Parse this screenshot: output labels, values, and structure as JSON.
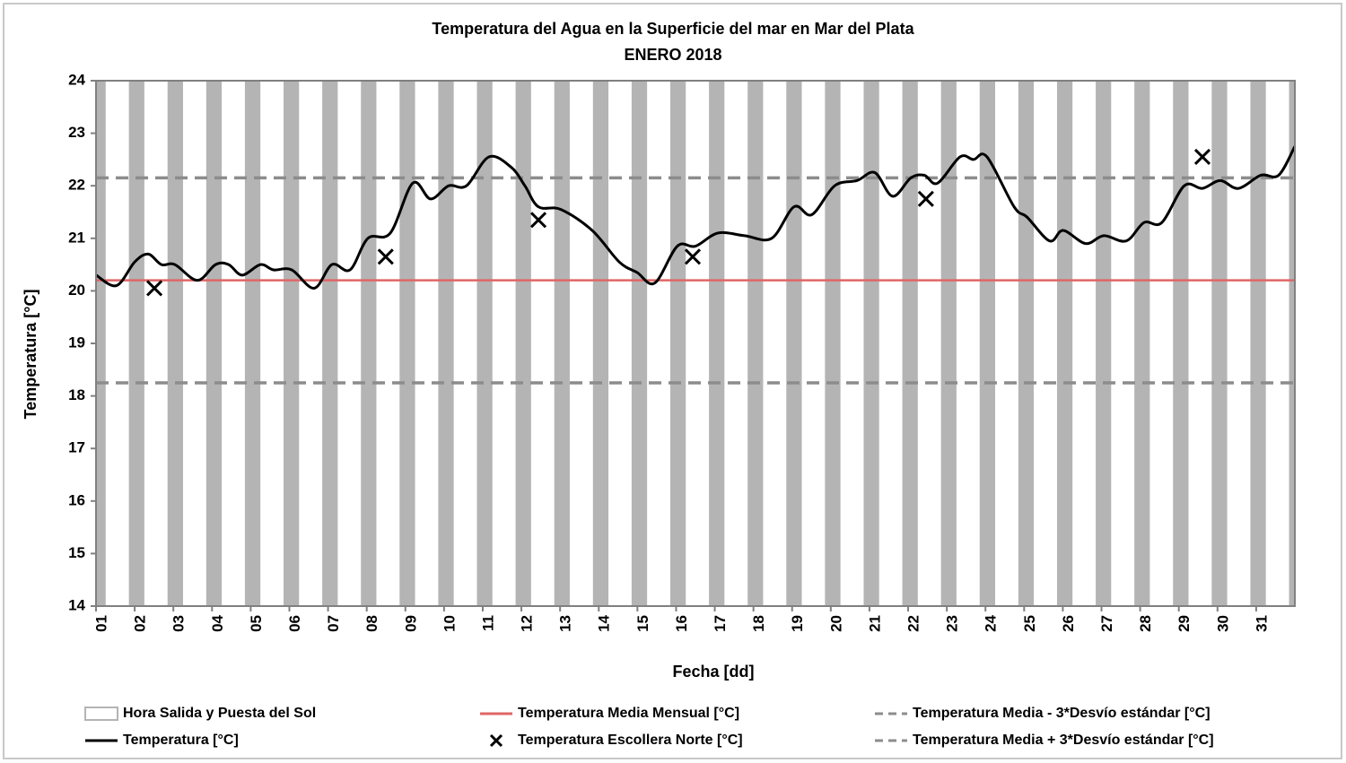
{
  "chart_data": {
    "type": "line",
    "title": "Temperatura del Agua en la Superficie del mar en Mar del Plata",
    "subtitle": "ENERO 2018",
    "xlabel": "Fecha [dd]",
    "ylabel": "Temperatura [°C]",
    "xlim": [
      1,
      32
    ],
    "ylim": [
      14,
      24
    ],
    "yticks": [
      14,
      15,
      16,
      17,
      18,
      19,
      20,
      21,
      22,
      23,
      24
    ],
    "xticks": [
      {
        "value": 1,
        "label": "01"
      },
      {
        "value": 2,
        "label": "02"
      },
      {
        "value": 3,
        "label": "03"
      },
      {
        "value": 4,
        "label": "04"
      },
      {
        "value": 5,
        "label": "05"
      },
      {
        "value": 6,
        "label": "06"
      },
      {
        "value": 7,
        "label": "07"
      },
      {
        "value": 8,
        "label": "08"
      },
      {
        "value": 9,
        "label": "09"
      },
      {
        "value": 10,
        "label": "10"
      },
      {
        "value": 11,
        "label": "11"
      },
      {
        "value": 12,
        "label": "12"
      },
      {
        "value": 13,
        "label": "13"
      },
      {
        "value": 14,
        "label": "14"
      },
      {
        "value": 15,
        "label": "15"
      },
      {
        "value": 16,
        "label": "16"
      },
      {
        "value": 17,
        "label": "17"
      },
      {
        "value": 18,
        "label": "18"
      },
      {
        "value": 19,
        "label": "19"
      },
      {
        "value": 20,
        "label": "20"
      },
      {
        "value": 21,
        "label": "21"
      },
      {
        "value": 22,
        "label": "22"
      },
      {
        "value": 23,
        "label": "23"
      },
      {
        "value": 24,
        "label": "24"
      },
      {
        "value": 25,
        "label": "25"
      },
      {
        "value": 26,
        "label": "26"
      },
      {
        "value": 27,
        "label": "27"
      },
      {
        "value": 28,
        "label": "28"
      },
      {
        "value": 29,
        "label": "29"
      },
      {
        "value": 30,
        "label": "30"
      },
      {
        "value": 31,
        "label": "31"
      }
    ],
    "series": [
      {
        "name": "Hora Salida y Puesta del Sol",
        "kind": "band",
        "color": "#b4b4b4",
        "bands": [
          [
            1,
            1.25
          ],
          [
            1.85,
            2.25
          ],
          [
            2.85,
            3.25
          ],
          [
            3.85,
            4.25
          ],
          [
            4.85,
            5.25
          ],
          [
            5.85,
            6.25
          ],
          [
            6.85,
            7.25
          ],
          [
            7.85,
            8.25
          ],
          [
            8.85,
            9.25
          ],
          [
            9.85,
            10.25
          ],
          [
            10.85,
            11.25
          ],
          [
            11.85,
            12.25
          ],
          [
            12.85,
            13.25
          ],
          [
            13.85,
            14.25
          ],
          [
            14.85,
            15.25
          ],
          [
            15.85,
            16.25
          ],
          [
            16.85,
            17.25
          ],
          [
            17.85,
            18.25
          ],
          [
            18.85,
            19.25
          ],
          [
            19.85,
            20.25
          ],
          [
            20.85,
            21.25
          ],
          [
            21.85,
            22.25
          ],
          [
            22.85,
            23.25
          ],
          [
            23.85,
            24.25
          ],
          [
            24.85,
            25.25
          ],
          [
            25.85,
            26.25
          ],
          [
            26.85,
            27.25
          ],
          [
            27.85,
            28.25
          ],
          [
            28.85,
            29.25
          ],
          [
            29.85,
            30.25
          ],
          [
            30.85,
            31.25
          ],
          [
            31.85,
            32
          ]
        ]
      },
      {
        "name": "Temperatura [°C]",
        "kind": "curve",
        "color": "#000000",
        "x": [
          1.0,
          1.53,
          2.0,
          2.35,
          2.69,
          3.04,
          3.62,
          4.09,
          4.43,
          4.78,
          5.25,
          5.59,
          6.06,
          6.64,
          7.1,
          7.57,
          8.03,
          8.61,
          9.19,
          9.65,
          10.12,
          10.58,
          11.16,
          11.74,
          12.09,
          12.44,
          13.02,
          13.83,
          14.53,
          14.99,
          15.45,
          16.03,
          16.5,
          17.08,
          17.77,
          18.47,
          19.05,
          19.51,
          20.1,
          20.68,
          21.14,
          21.6,
          22.07,
          22.42,
          22.76,
          23.34,
          23.69,
          24.04,
          24.74,
          25.08,
          25.66,
          26.01,
          26.59,
          27.06,
          27.64,
          28.1,
          28.56,
          29.14,
          29.61,
          30.07,
          30.54,
          31.12,
          31.58,
          32.0
        ],
        "values": [
          20.3,
          20.1,
          20.55,
          20.7,
          20.5,
          20.5,
          20.2,
          20.5,
          20.5,
          20.3,
          20.5,
          20.4,
          20.4,
          20.05,
          20.5,
          20.4,
          21.0,
          21.1,
          22.05,
          21.75,
          22.0,
          22.0,
          22.55,
          22.35,
          22.0,
          21.6,
          21.55,
          21.15,
          20.55,
          20.35,
          20.15,
          20.85,
          20.85,
          21.1,
          21.05,
          21.0,
          21.6,
          21.45,
          22.0,
          22.1,
          22.25,
          21.8,
          22.15,
          22.2,
          22.05,
          22.55,
          22.5,
          22.55,
          21.6,
          21.4,
          20.95,
          21.15,
          20.9,
          21.05,
          20.95,
          21.3,
          21.3,
          22.0,
          21.95,
          22.1,
          21.95,
          22.2,
          22.2,
          22.75
        ]
      },
      {
        "name": "Temperatura Media Mensual [°C]",
        "kind": "hline",
        "style": "solid",
        "color": "#e06666",
        "value": 20.2
      },
      {
        "name": "Temperatura Escollera Norte [°C]",
        "kind": "points",
        "color": "#000000",
        "x": [
          2.51,
          8.49,
          12.44,
          16.43,
          22.46,
          29.61
        ],
        "values": [
          20.05,
          20.65,
          21.35,
          20.65,
          21.75,
          22.55
        ]
      },
      {
        "name": "Temperatura Media - 3*Desvío estándar [°C]",
        "kind": "hline",
        "style": "dashed",
        "color": "#8c8c8c",
        "value": 18.25
      },
      {
        "name": "Temperatura Media + 3*Desvío estándar [°C]",
        "kind": "hline",
        "style": "dashed",
        "color": "#8c8c8c",
        "value": 22.15
      }
    ]
  }
}
